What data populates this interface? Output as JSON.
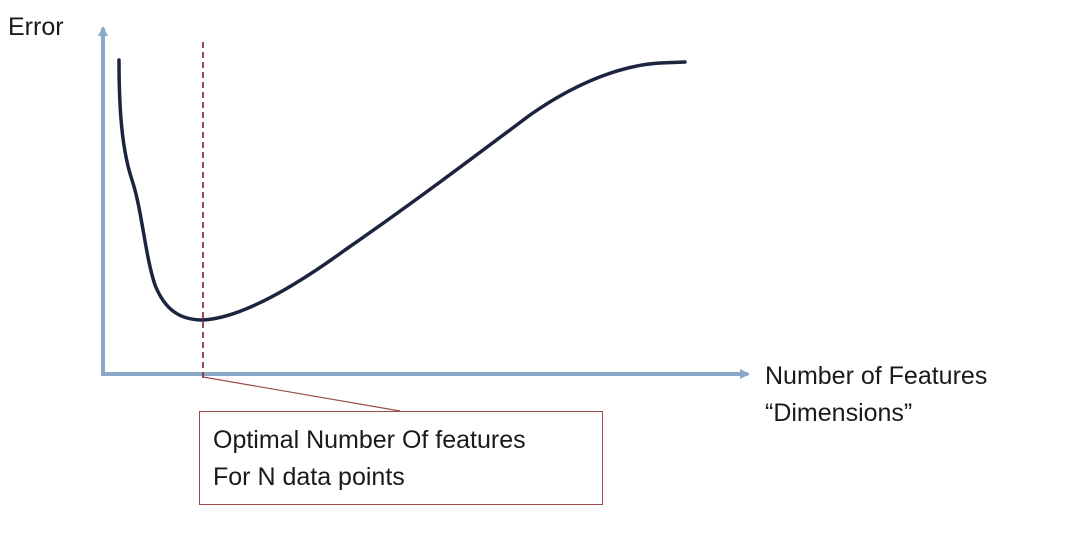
{
  "diagram": {
    "y_axis_label": "Error",
    "x_axis_label_lines": [
      "Number of Features",
      "“Dimensions”"
    ],
    "callout_lines": [
      "Optimal Number Of features",
      "For N data points"
    ]
  },
  "colors": {
    "axis": "#8aa8c8",
    "curve": "#1c2440",
    "optimum_marker": "#8b3a3a",
    "callout_border": "#9c4a4a"
  }
}
